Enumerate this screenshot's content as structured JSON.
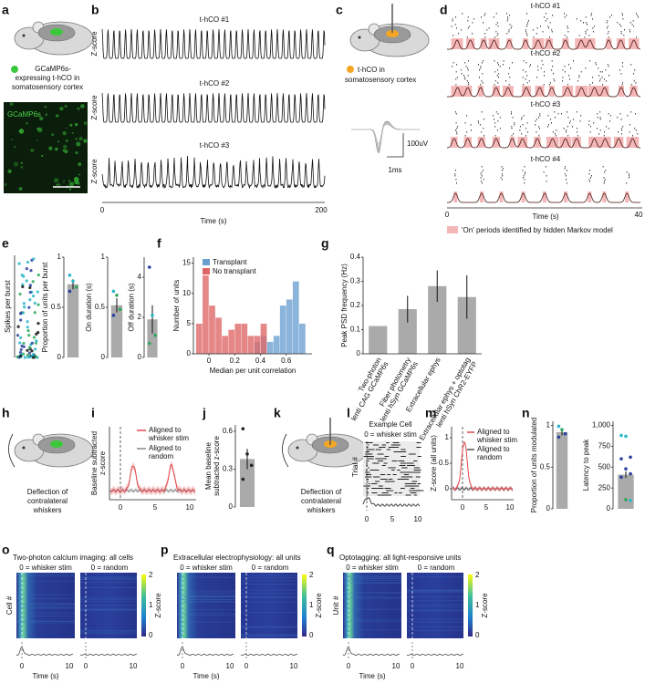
{
  "panel_letters": [
    "a",
    "b",
    "c",
    "d",
    "e",
    "f",
    "g",
    "h",
    "i",
    "j",
    "k",
    "l",
    "m",
    "n",
    "o",
    "p",
    "q"
  ],
  "a": {
    "caption": [
      "GCaMP6s-",
      "expressing t-hCO in",
      "somatosensory cortex"
    ],
    "image_label": "GCaMP6s"
  },
  "b": {
    "traces": [
      "t-hCO #1",
      "t-hCO #2",
      "t-hCO #3"
    ],
    "y_labels": [
      "Z-score",
      "Z-score",
      "Z-score"
    ],
    "x_ticks": [
      0,
      200
    ],
    "x_label": "Time (s)"
  },
  "c": {
    "caption": [
      "t-hCO in",
      "somatosensory cortex"
    ],
    "scale_y": "100uV",
    "scale_x": "1ms"
  },
  "d": {
    "rasters": [
      "t-hCO #1",
      "t-hCO #2",
      "t-hCO #3",
      "t-hCO #4"
    ],
    "x_ticks": [
      0,
      40
    ],
    "x_label": "Time (s)",
    "legend": "'On' periods identified by hidden Markov model"
  },
  "e": {
    "y_label": "Spikes per burst"
  },
  "h": {
    "caption": [
      "Deflection of",
      "contralateral",
      "whiskers"
    ]
  },
  "i": {
    "y_label": [
      "Baseline subtracted",
      "z-score"
    ],
    "legend": [
      [
        "Aligned to",
        "whisker stim"
      ],
      [
        "Aligned to",
        "random"
      ]
    ],
    "x_ticks": [
      0,
      5,
      10
    ]
  },
  "k": {
    "caption": [
      "Deflection of",
      "contralateral",
      "whiskers"
    ]
  },
  "l": {
    "title": "Example Cell",
    "subtitle": "0 = whisker stim",
    "y_label": "Trial #",
    "x_ticks": [
      0,
      5,
      10
    ]
  },
  "m": {
    "y_label": "Z-score (all units)",
    "yticks": [
      0,
      0.5,
      1
    ],
    "legend": [
      [
        "Aligned to",
        "whisker stim"
      ],
      [
        "Aligned to",
        "random"
      ]
    ],
    "x_ticks": [
      0,
      5,
      10
    ]
  },
  "o": {
    "title": "Two-photon calcium imaging: all cells",
    "left_label": "0 = whisker stim",
    "right_label": "0 = random",
    "y_label": "Cell #",
    "x_ticks": [
      0,
      10
    ],
    "x_label": "Time (s)",
    "colorbar_ticks": [
      0,
      1,
      2
    ],
    "colorbar_label": "Z-score"
  },
  "p": {
    "title": "Extracellular electrophysiology: all units",
    "left_label": "0 = whisker stim",
    "right_label": "0 = random",
    "x_ticks": [
      0,
      10
    ],
    "x_label": "Time (s)",
    "colorbar_ticks": [
      0,
      1,
      2
    ],
    "colorbar_label": "Z-score"
  },
  "q": {
    "title": "Optotagging: all light-responsive units",
    "left_label": "0 = whisker stim",
    "right_label": "0 = random",
    "y_label": "Unit #",
    "x_ticks": [
      0,
      10
    ],
    "x_label": "Time (s)",
    "colorbar_ticks": [
      0,
      1,
      2
    ],
    "colorbar_label": "Z-score"
  },
  "chart_data": [
    {
      "type": "bar",
      "y_label": "Proportion of units per burst",
      "values": [
        0.73
      ],
      "errors": [
        0.05
      ],
      "points": [
        0.82,
        0.76,
        0.7,
        0.66
      ],
      "point_colors": [
        "#29b6c9",
        "#29b6c9",
        "#2fa85a",
        "#2b3fa0"
      ],
      "color": "#aaaaaa",
      "ylim": [
        0,
        1
      ],
      "yticks": [
        0,
        0.5,
        1
      ]
    },
    {
      "type": "bar",
      "y_label": "On duration (s)",
      "values": [
        0.52
      ],
      "errors": [
        0.07
      ],
      "points": [
        0.66,
        0.62,
        0.48,
        0.42
      ],
      "point_colors": [
        "#29b6c9",
        "#2fa85a",
        "#2fa85a",
        "#2b3fa0"
      ],
      "color": "#aaaaaa",
      "ylim": [
        0,
        1
      ],
      "yticks": [
        0,
        0.5,
        1
      ]
    },
    {
      "type": "bar",
      "y_label": "Off duration (s)",
      "values": [
        1.9
      ],
      "errors": [
        0.7
      ],
      "points": [
        4.5,
        2.1,
        1.1,
        0.7
      ],
      "point_colors": [
        "#2b3fa0",
        "#29b6c9",
        "#2fa85a",
        "#2fa85a"
      ],
      "color": "#aaaaaa",
      "ylim": [
        0,
        5
      ],
      "yticks": [
        0,
        2,
        4
      ]
    },
    {
      "type": "histogram",
      "x_label": "Median per unit correlation",
      "y_label": "Number of units",
      "bins": [
        -0.1,
        -0.05,
        0,
        0.05,
        0.1,
        0.15,
        0.2,
        0.25,
        0.3,
        0.35,
        0.4,
        0.45,
        0.5,
        0.55,
        0.6,
        0.65,
        0.7,
        0.75
      ],
      "series": [
        {
          "name": "Transplant",
          "color": "#6a9fd0",
          "values": [
            0,
            0,
            0,
            0,
            0,
            0,
            0,
            0,
            0,
            2,
            3,
            2,
            3,
            8,
            9,
            12,
            5
          ]
        },
        {
          "name": "No transplant",
          "color": "#e06666",
          "values": [
            5,
            13,
            8,
            6,
            3,
            4,
            5,
            5,
            3,
            3,
            5,
            0,
            0,
            0,
            0,
            0,
            0
          ]
        }
      ],
      "xlim": [
        -0.12,
        0.8
      ],
      "ylim": [
        0,
        16
      ],
      "xticks": [
        0,
        0.2,
        0.4,
        0.6
      ],
      "yticks": [
        0,
        5,
        10,
        15
      ],
      "legend": "upper left"
    },
    {
      "type": "bar",
      "y_label": "Peak PSD frequency (Hz)",
      "categories": [
        [
          "Two-photon",
          "lenti CAG GCaMP6s"
        ],
        [
          "Fiber photometry",
          "lenti hSyn GCaMP6s"
        ],
        [
          "Extracellular ephys"
        ],
        [
          "Extracellular ephys + optotag",
          "lenti hSyn ChR2-EYFP"
        ]
      ],
      "values": [
        0.115,
        0.185,
        0.28,
        0.235
      ],
      "errors": [
        0,
        0.055,
        0.065,
        0.09
      ],
      "color": "#aaaaaa",
      "ylim": [
        0,
        0.4
      ],
      "yticks": [
        0,
        0.1,
        0.2,
        0.3,
        0.4
      ]
    },
    {
      "type": "bar",
      "y_label": [
        "Mean baseline",
        "subtracted z-score"
      ],
      "values": [
        0.38
      ],
      "errors": [
        0.08
      ],
      "points": [
        0.62,
        0.42,
        0.33,
        0.22
      ],
      "point_colors": [
        "#222222",
        "#222222",
        "#222222",
        "#222222"
      ],
      "color": "#aaaaaa",
      "ylim": [
        0,
        0.65
      ],
      "yticks": [
        0,
        0.3,
        0.6
      ]
    },
    {
      "type": "bar",
      "y_label": "Proportion of units modulated",
      "values": [
        0.92
      ],
      "errors": [
        0.04
      ],
      "points": [
        0.99,
        0.95,
        0.9,
        0.86
      ],
      "point_colors": [
        "#29b6c9",
        "#2fa85a",
        "#2b3fa0",
        "#2b3fa0"
      ],
      "color": "#aaaaaa",
      "ylim": [
        0,
        1.05
      ],
      "yticks": [
        0,
        0.5,
        1
      ]
    },
    {
      "type": "bar",
      "y_label": "Latency to peak",
      "values": [
        410
      ],
      "errors": [
        40
      ],
      "points": [
        880,
        870,
        620,
        600,
        480,
        420,
        380,
        110,
        100
      ],
      "point_colors": [
        "#29b6c9",
        "#29b6c9",
        "#2b3fa0",
        "#2b3fa0",
        "#2b3fa0",
        "#2b3fa0",
        "#2b3fa0",
        "#2fa85a",
        "#29b6c9"
      ],
      "color": "#aaaaaa",
      "ylim": [
        0,
        1050
      ],
      "yticks": [
        0,
        250,
        500,
        750,
        {
          "value": 1000,
          "label": "1,000"
        }
      ]
    }
  ]
}
